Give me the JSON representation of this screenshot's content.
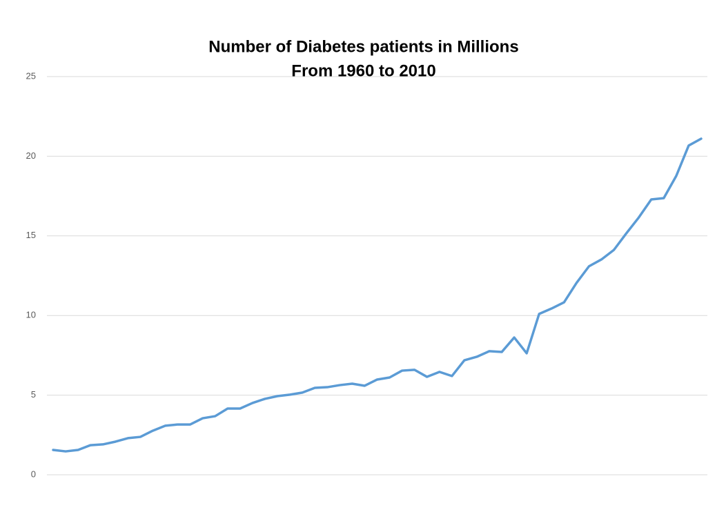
{
  "chart_data": {
    "type": "line",
    "title": "Number of Diabetes patients in Millions",
    "subtitle": "From 1960 to 2010",
    "series": [
      {
        "color": "#5b9bd5",
        "values": [
          1.56,
          1.47,
          1.56,
          1.86,
          1.91,
          2.08,
          2.3,
          2.38,
          2.77,
          3.08,
          3.16,
          3.16,
          3.55,
          3.68,
          4.16,
          4.16,
          4.51,
          4.77,
          4.94,
          5.03,
          5.16,
          5.46,
          5.5,
          5.63,
          5.72,
          5.59,
          5.98,
          6.11,
          6.54,
          6.59,
          6.15,
          6.46,
          6.2,
          7.19,
          7.41,
          7.76,
          7.71,
          8.62,
          7.63,
          10.1,
          10.44,
          10.83,
          12.05,
          13.09,
          13.52,
          14.12,
          15.16,
          16.16,
          17.29,
          17.37,
          18.76,
          20.67,
          21.1
        ]
      }
    ],
    "ylim": [
      0,
      25
    ],
    "yticks": [
      0,
      5,
      10,
      15,
      20,
      25
    ],
    "grid": true
  }
}
